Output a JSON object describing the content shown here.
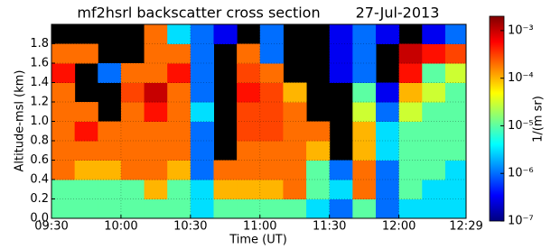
{
  "chart_data": {
    "type": "heatmap",
    "title": "mf2hsrl  backscatter cross section",
    "date": "27-Jul-2013",
    "xlabel": "Time (UT)",
    "ylabel": "Altitude-msl (km)",
    "colorbar_label": "1/(m sr)",
    "colormap": "jet",
    "log_scale_z": true,
    "grid": true,
    "xlim": [
      570,
      749
    ],
    "xticks": [
      {
        "value": 570,
        "label": "09:30"
      },
      {
        "value": 600,
        "label": "10:00"
      },
      {
        "value": 630,
        "label": "10:30"
      },
      {
        "value": 660,
        "label": "11:00"
      },
      {
        "value": 690,
        "label": "11:30"
      },
      {
        "value": 720,
        "label": "12:00"
      },
      {
        "value": 749,
        "label": "12:29"
      }
    ],
    "ylim": [
      0,
      2.0
    ],
    "yticks": [
      {
        "value": 0,
        "label": "0.0"
      },
      0.2,
      0.4,
      0.6,
      0.8,
      {
        "value": 1,
        "label": "1.0"
      },
      1.2,
      1.4,
      1.6,
      1.8
    ],
    "zlim": [
      1e-07,
      0.002
    ],
    "zticks": [
      {
        "value": 1e-07,
        "label": "10⁻⁷"
      },
      {
        "value": 1e-06,
        "label": "10⁻⁶"
      },
      {
        "value": 1e-05,
        "label": "10⁻⁵"
      },
      {
        "value": 0.0001,
        "label": "10⁻⁴"
      },
      {
        "value": 0.001,
        "label": "10⁻³"
      }
    ],
    "x": [
      575,
      585,
      595,
      605,
      615,
      625,
      635,
      645,
      655,
      665,
      675,
      685,
      695,
      705,
      715,
      725,
      735,
      745
    ],
    "y": [
      0.1,
      0.3,
      0.5,
      0.7,
      0.9,
      1.1,
      1.3,
      1.5,
      1.7,
      1.9
    ],
    "z": [
      [
        1e-05,
        1e-05,
        0.0002,
        0.0002,
        0.0002,
        0.0002,
        0.0002,
        0.0005,
        0.0002,
        null
      ],
      [
        1e-05,
        1e-05,
        0.0001,
        0.0002,
        0.0005,
        0.0002,
        null,
        null,
        0.0002,
        null
      ],
      [
        1e-05,
        1e-05,
        0.0001,
        0.0002,
        0.0002,
        null,
        null,
        1e-06,
        null,
        null
      ],
      [
        1e-05,
        1e-05,
        0.0002,
        0.0002,
        0.0002,
        0.0002,
        0.0003,
        0.0002,
        null,
        null
      ],
      [
        1e-05,
        0.0001,
        0.0002,
        0.0002,
        0.0002,
        0.0005,
        0.001,
        0.0002,
        0.0002,
        0.0002
      ],
      [
        1e-05,
        1e-05,
        0.0001,
        0.0002,
        0.0002,
        0.0002,
        0.0002,
        0.0005,
        0.0002,
        3e-06
      ],
      [
        3e-06,
        3e-06,
        1e-06,
        1e-06,
        1e-06,
        3e-06,
        1e-06,
        1e-06,
        1e-06,
        1e-06
      ],
      [
        1e-05,
        0.0001,
        0.0002,
        null,
        null,
        null,
        null,
        null,
        null,
        3e-07
      ],
      [
        1e-05,
        0.0001,
        0.0002,
        0.0002,
        0.0003,
        0.0003,
        0.0005,
        0.0003,
        0.0002,
        null
      ],
      [
        1e-05,
        0.0001,
        0.0002,
        0.0002,
        0.0003,
        0.0003,
        0.0003,
        0.0002,
        1e-06,
        1e-06
      ],
      [
        1e-05,
        0.0002,
        0.0002,
        0.0002,
        0.0002,
        0.0002,
        0.0001,
        null,
        null,
        null
      ],
      [
        3e-06,
        1e-05,
        1e-05,
        0.0001,
        0.0002,
        null,
        null,
        null,
        null,
        null
      ],
      [
        1e-06,
        3e-06,
        1e-06,
        null,
        null,
        null,
        null,
        3e-07,
        3e-07,
        3e-07
      ],
      [
        1e-05,
        0.0002,
        0.0002,
        0.0001,
        0.0001,
        3e-05,
        1e-05,
        1e-06,
        1e-06,
        1e-06
      ],
      [
        1e-06,
        1e-06,
        1e-06,
        3e-06,
        3e-06,
        1e-06,
        3e-07,
        null,
        null,
        3e-07
      ],
      [
        3e-06,
        1e-05,
        1e-05,
        1e-05,
        1e-05,
        3e-05,
        0.0001,
        0.0005,
        0.001,
        null
      ],
      [
        3e-06,
        3e-06,
        1e-05,
        1e-05,
        1e-05,
        1e-05,
        3e-05,
        1e-05,
        0.0005,
        3e-07
      ],
      [
        3e-06,
        3e-06,
        3e-06,
        1e-05,
        1e-05,
        1e-05,
        1e-05,
        3e-05,
        0.0003,
        1e-06
      ]
    ]
  }
}
